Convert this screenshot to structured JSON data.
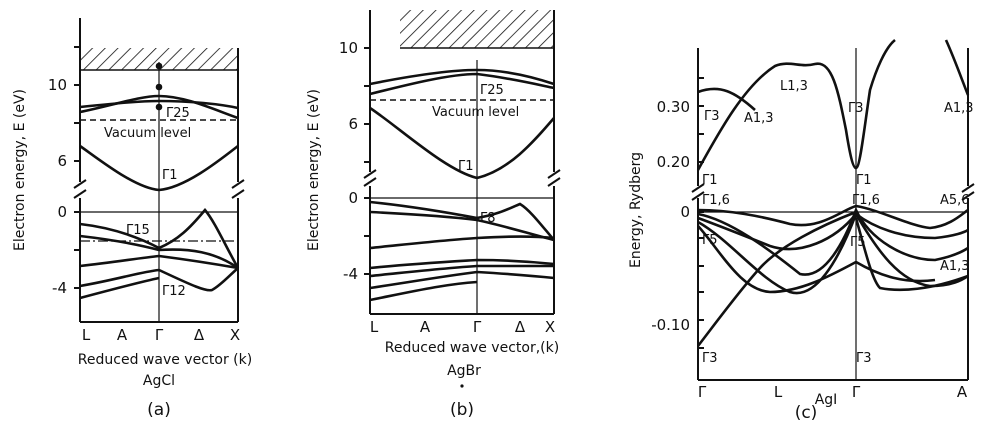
{
  "panel_a": {
    "ylabel": "Electron energy, E (eV)",
    "y_ticks": [
      "10",
      "6",
      "0",
      "-4"
    ],
    "x_ticks": [
      "L",
      "A",
      "Γ",
      "Δ",
      "X"
    ],
    "xlabel": "Reduced wave vector (k)",
    "material": "AgCl",
    "caption": "(a)",
    "labels": {
      "g25": "Γ25",
      "vacuum": "Vacuum level",
      "g1": "Γ1",
      "g15": "Γ15",
      "g12": "Γ12"
    }
  },
  "panel_b": {
    "ylabel": "Electron energy, E (eV)",
    "y_ticks": [
      "10",
      "6",
      "0",
      "-4"
    ],
    "x_ticks": [
      "L",
      "A",
      "Γ",
      "Δ",
      "X"
    ],
    "xlabel": "Reduced wave vector,(k)",
    "material": "AgBr",
    "caption": "(b)",
    "labels": {
      "g25": "Γ25",
      "vacuum": "Vacuum level",
      "g1": "Γ1",
      "g8": "Γ8"
    }
  },
  "panel_c": {
    "ylabel": "Energy, Rydberg",
    "y_ticks": [
      "0.30",
      "0.20",
      "0",
      "-0.10"
    ],
    "x_ticks": [
      "Γ",
      "L",
      "Γ",
      "A"
    ],
    "material": "AgI",
    "caption": "(c)",
    "labels": {
      "l13": "L1,3",
      "g3_top": "Γ3",
      "a13_left": "A1,3",
      "g3_mid": "Γ3",
      "a13_right": "A1,3",
      "g1_left": "Γ1",
      "g1_mid": "Γ1",
      "g16_left": "Γ1,6",
      "g16_mid": "Γ1,6",
      "a56": "A5,6",
      "g5_left": "Γ5",
      "g5_mid": "Γ5",
      "a13_low": "A1,3",
      "g3_bl": "Γ3",
      "g3_bm": "Γ3"
    }
  },
  "colors": {
    "ink": "#111111",
    "background": "#ffffff"
  }
}
